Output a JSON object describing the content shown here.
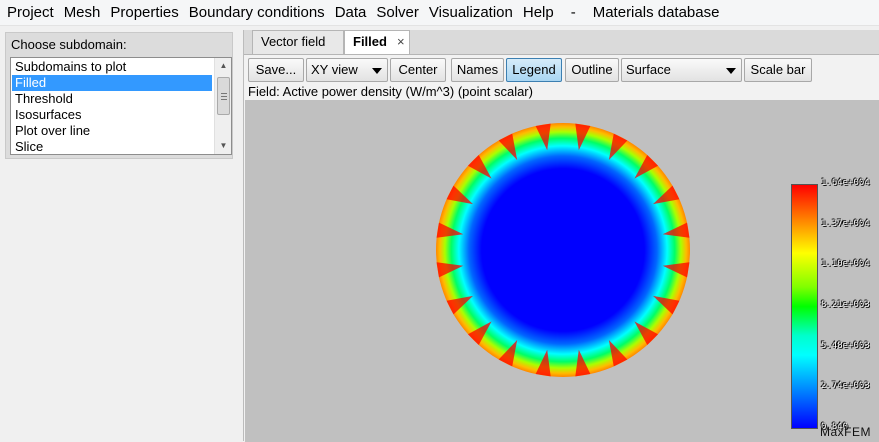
{
  "menu": [
    "Project",
    "Mesh",
    "Properties",
    "Boundary conditions",
    "Data",
    "Solver",
    "Visualization",
    "Help",
    "-",
    "Materials database"
  ],
  "subdomain": {
    "title": "Choose subdomain:",
    "items": [
      "Subdomains to plot",
      "Filled",
      "Threshold",
      "Isosurfaces",
      "Plot over line",
      "Slice"
    ],
    "selected_index": 1
  },
  "tabs": [
    {
      "label": "Vector field"
    },
    {
      "label": "Filled",
      "close": "×"
    }
  ],
  "toolbar": {
    "save": "Save...",
    "view": "XY view",
    "center": "Center",
    "names": "Names",
    "legend": "Legend",
    "outline": "Outline",
    "representation": "Surface",
    "scale_bar": "Scale bar"
  },
  "field_label": "Field: Active power density (W/m^3) (point scalar)",
  "colorbar": {
    "ticks": [
      "1.64e+004",
      "1.37e+004",
      "1.10e+004",
      "8.21e+003",
      "5.48e+003",
      "2.74e+003",
      "0.840"
    ]
  },
  "brand": "MaxFEM",
  "colors": {
    "selection": "#3399ff",
    "viewport": "#c0c0c0",
    "hot": "#ff0000",
    "cold": "#0000ff"
  }
}
